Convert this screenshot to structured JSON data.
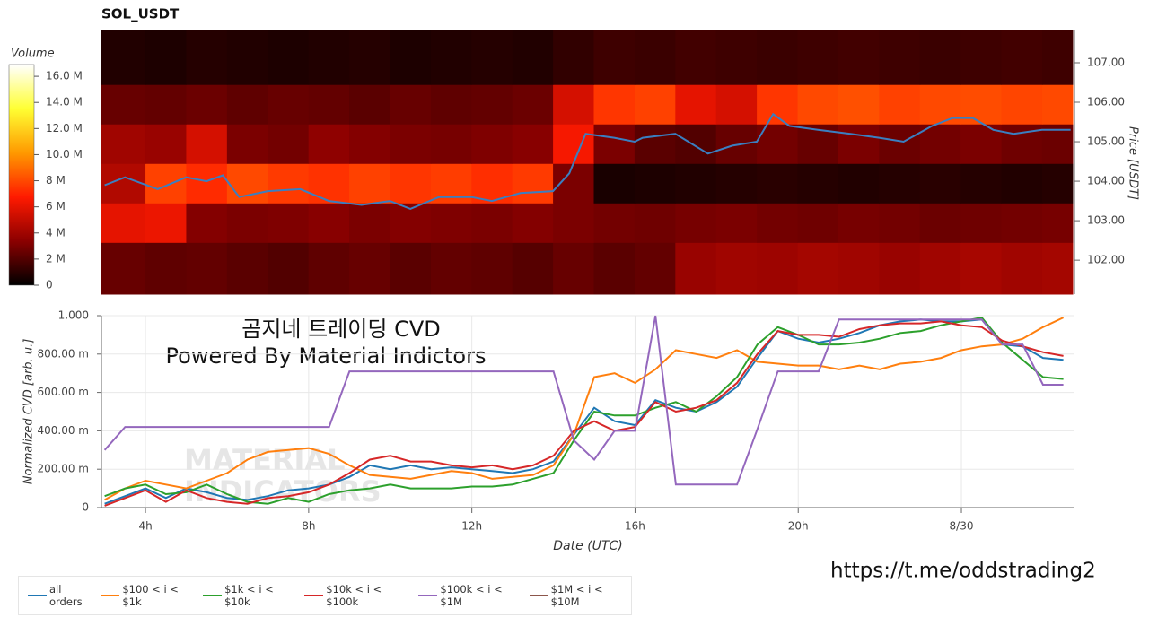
{
  "chart_data": [
    {
      "type": "heatmap",
      "title": "SOL_USDT",
      "x_edges": [
        2.92,
        4,
        5,
        6,
        7,
        8,
        9,
        10,
        11,
        12,
        13,
        14,
        15,
        16,
        17,
        18,
        19,
        20,
        21,
        22,
        23,
        24,
        25,
        26,
        26.75
      ],
      "y_edges": [
        101.14,
        102.45,
        103.45,
        104.45,
        105.45,
        106.45,
        107.84
      ],
      "values": [
        [
          2.5,
          2.3,
          2.4,
          2.2,
          2.0,
          2.3,
          2.5,
          2.2,
          2.4,
          2.3,
          2.1,
          2.5,
          2.2,
          2.4,
          3.8,
          4.0,
          3.9,
          4.1,
          4.0,
          3.8,
          4.0,
          4.2,
          4.0,
          4.1
        ],
        [
          6.0,
          6.2,
          3.2,
          3.0,
          3.1,
          3.3,
          3.0,
          3.2,
          3.1,
          3.0,
          3.2,
          3.0,
          2.8,
          2.7,
          2.9,
          3.0,
          2.8,
          2.7,
          2.9,
          2.8,
          2.6,
          2.7,
          2.8,
          2.9
        ],
        [
          4.5,
          7.8,
          7.2,
          8.0,
          7.6,
          7.4,
          7.8,
          7.5,
          7.7,
          7.3,
          7.6,
          3.0,
          0.6,
          0.7,
          0.8,
          0.9,
          1.0,
          0.9,
          0.8,
          0.9,
          1.0,
          0.9,
          0.8,
          0.9
        ],
        [
          4.0,
          3.8,
          5.5,
          3.0,
          2.8,
          3.5,
          3.2,
          3.0,
          2.9,
          3.1,
          3.3,
          6.5,
          3.0,
          2.2,
          2.0,
          2.5,
          2.8,
          2.5,
          3.0,
          2.6,
          2.8,
          3.0,
          2.7,
          2.6
        ],
        [
          2.5,
          2.4,
          2.6,
          2.3,
          2.5,
          2.4,
          2.2,
          2.5,
          2.3,
          2.4,
          2.6,
          5.5,
          7.5,
          7.8,
          6.0,
          5.5,
          7.5,
          8.0,
          8.2,
          7.8,
          8.0,
          8.1,
          7.9,
          8.0
        ],
        [
          0.8,
          0.7,
          0.9,
          0.8,
          0.7,
          0.8,
          0.9,
          0.7,
          0.8,
          0.9,
          0.8,
          1.2,
          1.5,
          1.4,
          1.6,
          1.5,
          1.4,
          1.5,
          1.6,
          1.5,
          1.4,
          1.5,
          1.6,
          1.5
        ]
      ],
      "xlim": [
        2.92,
        26.75
      ],
      "ylim": [
        101.14,
        107.84
      ],
      "y_label": "Price [USDT]",
      "yticks": [
        {
          "value": 102,
          "label": "102.00"
        },
        {
          "value": 103,
          "label": "103.00"
        },
        {
          "value": 104,
          "label": "104.00"
        },
        {
          "value": 105,
          "label": "105.00"
        },
        {
          "value": 106,
          "label": "106.00"
        },
        {
          "value": 107,
          "label": "107.00"
        }
      ],
      "colors": [
        "#000000",
        "#8b0000",
        "#ff1a00",
        "#ff9900",
        "#ffff33",
        "#ffffff"
      ],
      "colorbar": {
        "label": "Volume",
        "lim": [
          0,
          16.9
        ],
        "ticks": [
          0,
          {
            "value": 2,
            "label": "2 M"
          },
          {
            "value": 4,
            "label": "4 M"
          },
          {
            "value": 6,
            "label": "6 M"
          },
          {
            "value": 8,
            "label": "8 M"
          },
          {
            "value": 10,
            "label": "10.0 M"
          },
          {
            "value": 12,
            "label": "12.0 M"
          },
          {
            "value": 14,
            "label": "14.0 M"
          },
          {
            "value": 16,
            "label": "16.0 M"
          }
        ]
      },
      "line": {
        "color": "#3a7fc1",
        "x": [
          3,
          3.5,
          4.3,
          5,
          5.5,
          5.9,
          6.3,
          7,
          7.8,
          8.5,
          9.3,
          10,
          10.5,
          11.2,
          12,
          12.5,
          13.2,
          14,
          14.4,
          14.8,
          15.5,
          16,
          16.2,
          17,
          17.8,
          18.4,
          19,
          19.4,
          19.8,
          20.5,
          21.3,
          22,
          22.6,
          23.3,
          23.8,
          24.3,
          24.8,
          25.3,
          26,
          26.7
        ],
        "values": [
          103.9,
          104.1,
          103.8,
          104.1,
          104.0,
          104.15,
          103.6,
          103.75,
          103.8,
          103.5,
          103.4,
          103.5,
          103.3,
          103.6,
          103.6,
          103.5,
          103.7,
          103.75,
          104.2,
          105.2,
          105.1,
          105.0,
          105.1,
          105.2,
          104.7,
          104.9,
          105.0,
          105.7,
          105.4,
          105.3,
          105.2,
          105.1,
          105.0,
          105.4,
          105.6,
          105.6,
          105.3,
          105.2,
          105.3,
          105.3
        ]
      }
    },
    {
      "type": "line",
      "x_label": "Date (UTC)",
      "y_label": "Normalized CVD [arb. u.]",
      "xlim": [
        2.92,
        26.75
      ],
      "ylim": [
        0,
        1
      ],
      "grid": true,
      "xticks": [
        {
          "value": 4,
          "label": "4h"
        },
        {
          "value": 8,
          "label": "8h"
        },
        {
          "value": 12,
          "label": "12h"
        },
        {
          "value": 16,
          "label": "16h"
        },
        {
          "value": 20,
          "label": "20h"
        },
        {
          "value": 24,
          "label": "8/30"
        }
      ],
      "yticks": [
        0,
        {
          "value": 0.2,
          "label": "200.00 m"
        },
        {
          "value": 0.4,
          "label": "400.00 m"
        },
        {
          "value": 0.6,
          "label": "600.00 m"
        },
        {
          "value": 0.8,
          "label": "800.00 m"
        },
        {
          "value": 1,
          "label": "1.000"
        }
      ],
      "x": [
        3,
        3.5,
        4,
        4.5,
        5,
        5.5,
        6,
        6.5,
        7,
        7.5,
        8,
        8.5,
        9,
        9.5,
        10,
        10.5,
        11,
        11.5,
        12,
        12.5,
        13,
        13.5,
        14,
        14.5,
        15,
        15.5,
        16,
        16.5,
        17,
        17.5,
        18,
        18.5,
        19,
        19.5,
        20,
        20.5,
        21,
        21.5,
        22,
        22.5,
        23,
        23.5,
        24,
        24.5,
        25,
        25.5,
        26,
        26.5
      ],
      "series": [
        {
          "name": "all orders",
          "color": "#1f77b4",
          "values": [
            0.02,
            0.06,
            0.1,
            0.05,
            0.1,
            0.08,
            0.05,
            0.04,
            0.06,
            0.09,
            0.1,
            0.12,
            0.16,
            0.22,
            0.2,
            0.22,
            0.2,
            0.21,
            0.2,
            0.19,
            0.18,
            0.2,
            0.24,
            0.38,
            0.52,
            0.45,
            0.43,
            0.56,
            0.52,
            0.5,
            0.55,
            0.63,
            0.78,
            0.92,
            0.88,
            0.86,
            0.88,
            0.91,
            0.95,
            0.97,
            0.98,
            0.97,
            0.97,
            0.98,
            0.85,
            0.84,
            0.78,
            0.77
          ]
        },
        {
          "name": "$100 < i < $1k",
          "color": "#ff7f0e",
          "values": [
            0.04,
            0.1,
            0.14,
            0.12,
            0.1,
            0.14,
            0.18,
            0.25,
            0.29,
            0.3,
            0.31,
            0.28,
            0.22,
            0.17,
            0.16,
            0.15,
            0.17,
            0.19,
            0.18,
            0.15,
            0.16,
            0.17,
            0.22,
            0.38,
            0.68,
            0.7,
            0.65,
            0.72,
            0.82,
            0.8,
            0.78,
            0.82,
            0.76,
            0.75,
            0.74,
            0.74,
            0.72,
            0.74,
            0.72,
            0.75,
            0.76,
            0.78,
            0.82,
            0.84,
            0.85,
            0.88,
            0.94,
            0.99
          ]
        },
        {
          "name": "$1k < i < $10k",
          "color": "#2ca02c",
          "values": [
            0.06,
            0.1,
            0.12,
            0.07,
            0.08,
            0.12,
            0.07,
            0.03,
            0.02,
            0.05,
            0.03,
            0.07,
            0.09,
            0.1,
            0.12,
            0.1,
            0.1,
            0.1,
            0.11,
            0.11,
            0.12,
            0.15,
            0.18,
            0.35,
            0.5,
            0.48,
            0.48,
            0.52,
            0.55,
            0.5,
            0.58,
            0.68,
            0.85,
            0.94,
            0.9,
            0.85,
            0.85,
            0.86,
            0.88,
            0.91,
            0.92,
            0.95,
            0.97,
            0.99,
            0.86,
            0.77,
            0.68,
            0.67
          ]
        },
        {
          "name": "$10k < i < $100k",
          "color": "#d62728",
          "values": [
            0.01,
            0.05,
            0.09,
            0.03,
            0.09,
            0.05,
            0.03,
            0.02,
            0.05,
            0.06,
            0.08,
            0.12,
            0.18,
            0.25,
            0.27,
            0.24,
            0.24,
            0.22,
            0.21,
            0.22,
            0.2,
            0.22,
            0.27,
            0.4,
            0.45,
            0.4,
            0.42,
            0.55,
            0.5,
            0.52,
            0.56,
            0.65,
            0.8,
            0.92,
            0.9,
            0.9,
            0.89,
            0.93,
            0.95,
            0.96,
            0.96,
            0.97,
            0.95,
            0.94,
            0.87,
            0.84,
            0.81,
            0.79
          ]
        },
        {
          "name": "$100k < i < $1M",
          "color": "#9467bd",
          "values": [
            0.3,
            0.42,
            0.42,
            0.42,
            0.42,
            0.42,
            0.42,
            0.42,
            0.42,
            0.42,
            0.42,
            0.42,
            0.71,
            0.71,
            0.71,
            0.71,
            0.71,
            0.71,
            0.71,
            0.71,
            0.71,
            0.71,
            0.71,
            0.35,
            0.25,
            0.4,
            0.4,
            1.0,
            0.12,
            0.12,
            0.12,
            0.12,
            0.41,
            0.71,
            0.71,
            0.71,
            0.98,
            0.98,
            0.98,
            0.98,
            0.98,
            0.98,
            0.98,
            0.98,
            0.85,
            0.85,
            0.64,
            0.64
          ]
        },
        {
          "name": "$1M < i < $10M",
          "color": "#8c564b",
          "values": [
            null,
            null,
            null,
            null,
            null,
            null,
            null,
            null,
            null,
            null,
            null,
            null,
            null,
            null,
            null,
            null,
            null,
            null,
            null,
            null,
            null,
            null,
            null,
            null,
            null,
            null,
            null,
            null,
            null,
            null,
            null,
            null,
            null,
            null,
            null,
            null,
            null,
            null,
            null,
            null,
            null,
            null,
            null,
            null,
            null,
            null,
            null,
            null
          ]
        }
      ]
    }
  ],
  "annotations": {
    "line1": "곰지네 트레이딩 CVD",
    "line2": "Powered By Material Indictors",
    "link": "https://t.me/oddstrading2",
    "watermark1": "MATERIAL",
    "watermark2": "INDICATORS"
  }
}
